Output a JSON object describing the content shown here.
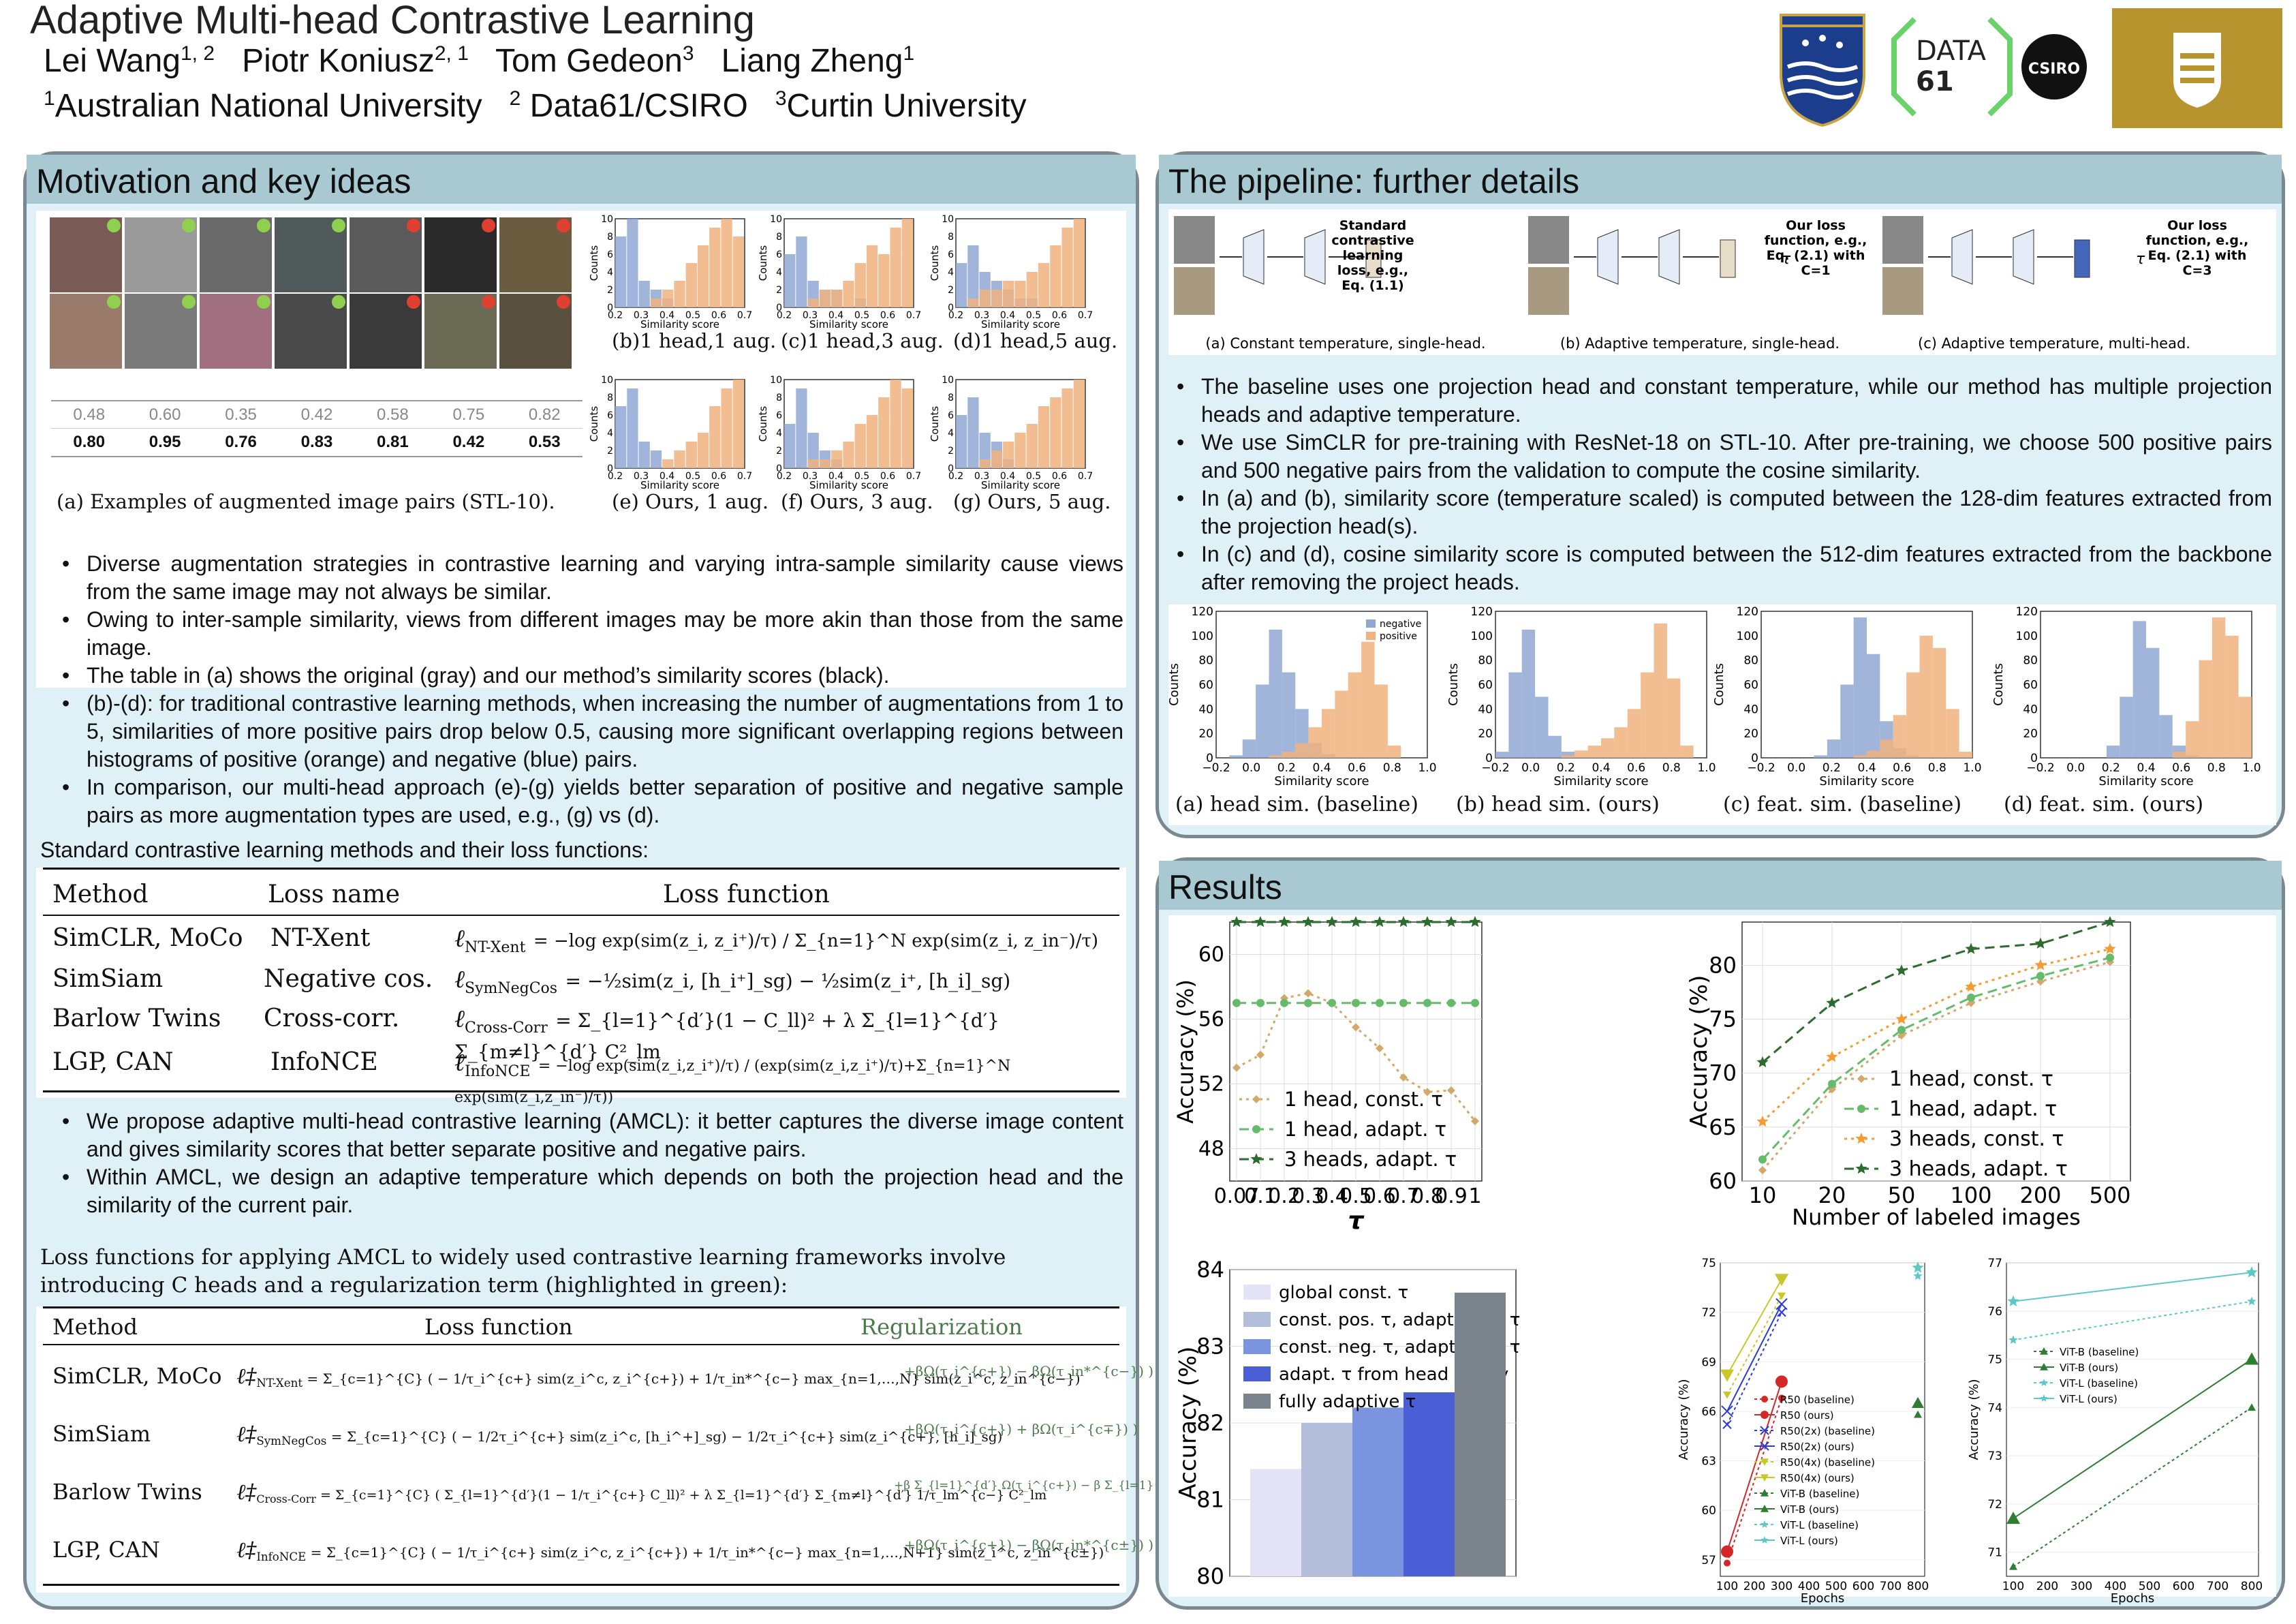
{
  "header": {
    "title": "Adaptive Multi-head Contrastive Learning",
    "authors": [
      "Lei Wang",
      "1, 2",
      "Piotr Koniusz",
      "2, 1",
      "Tom Gedeon",
      "3",
      "Liang Zheng",
      "1"
    ],
    "affil": [
      "1",
      "Australian National University",
      "2",
      "Data61/CSIRO",
      "3",
      "Curtin University"
    ],
    "logos": {
      "anu": "ANU crest",
      "data61": "DATA 61",
      "csiro": "CSIRO",
      "curtin": "Curtin"
    }
  },
  "motivation": {
    "title": "Motivation and key ideas",
    "sim_orig": [
      "0.48",
      "0.60",
      "0.35",
      "0.42",
      "0.58",
      "0.75",
      "0.82"
    ],
    "sim_ours": [
      "0.80",
      "0.95",
      "0.76",
      "0.83",
      "0.81",
      "0.42",
      "0.53"
    ],
    "caption_a": "(a) Examples of augmented image pairs (STL-10).",
    "hist_caps": [
      "(b)1 head,1 aug.",
      "(c)1 head,3 aug.",
      "(d)1 head,5 aug.",
      "(e) Ours, 1 aug.",
      "(f) Ours, 3 aug.",
      "(g) Ours, 5 aug."
    ],
    "hist_xlabel": "Similarity score",
    "hist_ylabel": "Counts",
    "hist_xticks": [
      "0.2",
      "0.3",
      "0.4",
      "0.5",
      "0.6",
      "0.7"
    ],
    "hist_yticks": [
      "10",
      "8",
      "6",
      "4",
      "2",
      "0"
    ],
    "bullets": [
      "Diverse augmentation strategies in contrastive learning and varying intra-sample similarity cause views from the same image may not always be similar.",
      "Owing to inter-sample similarity, views from different images may be more akin than those from the same image.",
      "The table in (a) shows the original (gray) and our method’s similarity scores (black).",
      "(b)-(d): for traditional contrastive learning methods, when increasing the number of augmentations from 1 to 5, similarities of more positive pairs drop below 0.5, causing more significant overlapping regions between histograms of positive (orange) and negative (blue) pairs.",
      "In comparison, our multi-head approach (e)-(g) yields better separation of positive and negative sample pairs as more augmentation types are used, e.g., (g) vs (d)."
    ],
    "std_intro": "Standard contrastive learning methods and their loss functions:",
    "table1": {
      "headers": [
        "Method",
        "Loss name",
        "Loss function"
      ],
      "rows": [
        {
          "m": "SimCLR, MoCo",
          "n": "NT-Xent",
          "l": "ℓ",
          "sub": "NT-Xent",
          "f": "= −log exp(sim(z_i, z_i⁺)/τ) / Σ_{n=1}^N exp(sim(z_i, z_in⁻)/τ)"
        },
        {
          "m": "SimSiam",
          "n": "Negative cos.",
          "l": "ℓ",
          "sub": "SymNegCos",
          "f": "= −½sim(z_i, [h_i⁺]_sg) − ½sim(z_i⁺, [h_i]_sg)"
        },
        {
          "m": "Barlow Twins",
          "n": "Cross-corr.",
          "l": "ℓ",
          "sub": "Cross-Corr",
          "f": "= Σ_{l=1}^{d′}(1 − C_ll)² + λ Σ_{l=1}^{d′} Σ_{m≠l}^{d′} C²_lm"
        },
        {
          "m": "LGP, CAN",
          "n": "InfoNCE",
          "l": "ℓ",
          "sub": "InfoNCE",
          "f": "= −log exp(sim(z_i,z_i⁺)/τ) / (exp(sim(z_i,z_i⁺)/τ)+Σ_{n=1}^N exp(sim(z_i,z_in⁻)/τ))"
        }
      ]
    },
    "bullets2": [
      "We propose adaptive multi-head contrastive learning (AMCL): it better captures the diverse image content and gives similarity scores that better separate positive and negative pairs.",
      "Within AMCL, we design an adaptive temperature which depends on both the projection head and the similarity of the current pair."
    ],
    "amcl_intro": "Loss functions for applying AMCL to widely used contrastive learning frameworks involve introducing C heads and a regularization term (highlighted in green):",
    "table2": {
      "headers": [
        "Method",
        "Loss function",
        "Regularization"
      ],
      "rows": [
        {
          "m": "SimCLR, MoCo",
          "l": "ℓ‡",
          "sub": "NT-Xent",
          "f": "= Σ_{c=1}^{C} ( − 1/τ_i^{c+} sim(z_i^c, z_i^{c+}) + 1/τ_in*^{c−} max_{n=1,…,N} sim(z_i^c, z_in^{c−})",
          "r": "+βΩ(τ_i^{c+}) − βΩ(τ_in*^{c−}) )"
        },
        {
          "m": "SimSiam",
          "l": "ℓ‡",
          "sub": "SymNegCos",
          "f": "= Σ_{c=1}^{C} ( − 1/2τ_i^{c+} sim(z_i^c, [h_i^+]_sg) − 1/2τ_i^{c+} sim(z_i^{c+}, [h_i]_sg)",
          "r": "+βΩ(τ_i^{c+}) + βΩ(τ_i^{c∓}) )"
        },
        {
          "m": "Barlow Twins",
          "l": "ℓ‡",
          "sub": "Cross-Corr",
          "f": "= Σ_{c=1}^{C} ( Σ_{l=1}^{d′}(1 − 1/τ_i^{c+} C_ll)² + λ Σ_{l=1}^{d′} Σ_{m≠l}^{d′} 1/τ_lm^{c−} C²_lm",
          "r": "+β Σ_{l=1}^{d′} Ω(τ_i^{c+}) − β Σ_{l=1}^{d′} Σ_{m≠l}^{d′} Ω(τ_lm^{c−}) )"
        },
        {
          "m": "LGP, CAN",
          "l": "ℓ‡",
          "sub": "InfoNCE",
          "f": "= Σ_{c=1}^{C} ( − 1/τ_i^{c+} sim(z_i^c, z_i^{c+}) + 1/τ_in*^{c−} max_{n=1,…,N+1} sim(z_i^c, z_in^{c±})",
          "r": "+βΩ(τ_i^{c+}) − βΩ(τ_in*^{c±}) )"
        }
      ]
    }
  },
  "pipeline": {
    "title": "The pipeline: further details",
    "diag_caps": [
      "(a) Constant temperature, single-head.",
      "(b) Adaptive temperature, single-head.",
      "(c) Adaptive temperature, multi-head."
    ],
    "diag_labels": [
      [
        "Standard",
        "contrastive",
        "learning",
        "loss, e.g.,",
        "Eq. (1.1)"
      ],
      [
        "Our loss",
        "function, e.g.,",
        "Eq. (2.1) with",
        "C=1"
      ],
      [
        "Our loss",
        "function, e.g.,",
        "Eq. (2.1) with",
        "C=3"
      ]
    ],
    "tau": "τ",
    "bullets": [
      "The baseline uses one projection head and constant temperature, while our method has multiple projection heads and adaptive temperature.",
      "We use SimCLR for pre-training with ResNet-18 on STL-10. After pre-training, we choose 500 positive pairs and 500 negative pairs from the validation to compute the cosine similarity.",
      "In (a) and (b), similarity score (temperature scaled) is computed between the 128-dim features extracted from the projection head(s).",
      "In (c) and (d), cosine similarity score is computed between the 512-dim features extracted from the backbone after removing the project heads."
    ],
    "hist_caps": [
      "(a) head sim. (baseline)",
      "(b) head sim. (ours)",
      "(c) feat. sim. (baseline)",
      "(d) feat. sim. (ours)"
    ],
    "hist_xlabel": "Similarity score",
    "hist_ylabel": "Counts",
    "hist_xticks": [
      "−0.2",
      "0.0",
      "0.2",
      "0.4",
      "0.6",
      "0.8",
      "1.0"
    ],
    "hist_yticks": [
      "120",
      "100",
      "80",
      "60",
      "40",
      "20",
      "0"
    ],
    "legend": [
      "negative",
      "positive"
    ]
  },
  "results": {
    "title": "Results",
    "colors": {
      "tan": "#d4a76a",
      "green_l": "#66bb6a",
      "green_d": "#2e6b2e",
      "orange": "#f39c32"
    },
    "chart_data": [
      {
        "type": "line",
        "xlabel": "τ",
        "ylabel": "Accuracy (%)",
        "x": [
          "0.07",
          "0.1",
          "0.2",
          "0.3",
          "0.4",
          "0.5",
          "0.6",
          "0.7",
          "0.8",
          "0.9",
          "1"
        ],
        "ylim": [
          46,
          62
        ],
        "yticks": [
          48,
          52,
          56,
          60
        ],
        "series": [
          {
            "name": "1 head, const. τ",
            "values": [
              53.0,
              53.8,
              57.3,
              57.6,
              57.0,
              55.5,
              54.2,
              52.4,
              51.5,
              51.6,
              49.7
            ]
          },
          {
            "name": "1 head, adapt. τ",
            "values": [
              57.0,
              57.0,
              57.0,
              57.0,
              57.0,
              57.0,
              57.0,
              57.0,
              57.0,
              57.0,
              57.0
            ]
          },
          {
            "name": "3 heads, adapt. τ",
            "values": [
              62.0,
              62.0,
              62.0,
              62.0,
              62.0,
              62.0,
              62.0,
              62.0,
              62.0,
              62.0,
              62.0
            ]
          }
        ]
      },
      {
        "type": "line",
        "xlabel": "Number of labeled images",
        "ylabel": "Accuracy (%)",
        "x": [
          "10",
          "20",
          "50",
          "100",
          "200",
          "500"
        ],
        "ylim": [
          60,
          84
        ],
        "yticks": [
          60,
          65,
          70,
          75,
          80
        ],
        "series": [
          {
            "name": "1 head, const. τ",
            "values": [
              61.0,
              68.5,
              73.5,
              76.5,
              78.5,
              80.3
            ]
          },
          {
            "name": "1 head, adapt. τ",
            "values": [
              62.0,
              69.0,
              74.0,
              77.0,
              79.0,
              80.7
            ]
          },
          {
            "name": "3 heads, const. τ",
            "values": [
              65.5,
              71.5,
              75.0,
              78.0,
              80.0,
              81.5
            ]
          },
          {
            "name": "3 heads, adapt. τ",
            "values": [
              71.0,
              76.5,
              79.5,
              81.5,
              82.0,
              84.0
            ]
          }
        ]
      },
      {
        "type": "bar",
        "ylabel": "Accuracy (%)",
        "ylim": [
          80,
          84
        ],
        "yticks": [
          80,
          81,
          82,
          83,
          84
        ],
        "categories": [
          "global const. τ",
          "const. pos. τ, adapt. neg. τ",
          "const. neg. τ, adapt. pos. τ",
          "adapt. τ from head 1 only",
          "fully adaptive τ"
        ],
        "values": [
          81.4,
          82.0,
          82.2,
          82.4,
          83.7
        ],
        "colors": [
          "#e3e3f5",
          "#b3bedb",
          "#7b94e0",
          "#4a5fd6",
          "#7a838c"
        ]
      },
      {
        "type": "line",
        "xlabel": "Epochs",
        "ylabel": "Accuracy (%)",
        "x": [
          "100",
          "200",
          "300",
          "400",
          "500",
          "600",
          "700",
          "800"
        ],
        "ylim": [
          56,
          75
        ],
        "yticks": [
          57,
          60,
          63,
          66,
          69,
          72,
          75
        ],
        "series": [
          {
            "name": "R50 (baseline)",
            "x": [
              100,
              300
            ],
            "values": [
              56.8,
              66.8
            ]
          },
          {
            "name": "R50 (ours)",
            "x": [
              100,
              300
            ],
            "values": [
              57.5,
              67.8
            ]
          },
          {
            "name": "R50(2x) (baseline)",
            "x": [
              100,
              300
            ],
            "values": [
              65.2,
              72.0
            ]
          },
          {
            "name": "R50(2x) (ours)",
            "x": [
              100,
              300
            ],
            "values": [
              66.0,
              72.5
            ]
          },
          {
            "name": "R50(4x) (baseline)",
            "x": [
              100,
              300
            ],
            "values": [
              67.0,
              73.0
            ]
          },
          {
            "name": "R50(4x) (ours)",
            "x": [
              100,
              300
            ],
            "values": [
              68.2,
              74.0
            ]
          },
          {
            "name": "ViT-B (baseline)",
            "x": [
              800
            ],
            "values": [
              65.8
            ]
          },
          {
            "name": "ViT-B (ours)",
            "x": [
              800
            ],
            "values": [
              66.5
            ]
          },
          {
            "name": "ViT-L (baseline)",
            "x": [
              800
            ],
            "values": [
              74.2
            ]
          },
          {
            "name": "ViT-L (ours)",
            "x": [
              800
            ],
            "values": [
              74.7
            ]
          }
        ]
      },
      {
        "type": "line",
        "xlabel": "Epochs",
        "ylabel": "Accuracy (%)",
        "x": [
          "100",
          "200",
          "300",
          "400",
          "500",
          "600",
          "700",
          "800"
        ],
        "ylim": [
          70.5,
          77
        ],
        "yticks": [
          71,
          72,
          73,
          74,
          75,
          76,
          77
        ],
        "series": [
          {
            "name": "ViT-B (baseline)",
            "x": [
              100,
              800
            ],
            "values": [
              70.7,
              74.0
            ]
          },
          {
            "name": "ViT-B (ours)",
            "x": [
              100,
              800
            ],
            "values": [
              71.7,
              75.0
            ]
          },
          {
            "name": "ViT-L (baseline)",
            "x": [
              100,
              800
            ],
            "values": [
              75.4,
              76.2
            ]
          },
          {
            "name": "ViT-L (ours)",
            "x": [
              100,
              800
            ],
            "values": [
              76.2,
              76.8
            ]
          }
        ]
      }
    ]
  }
}
